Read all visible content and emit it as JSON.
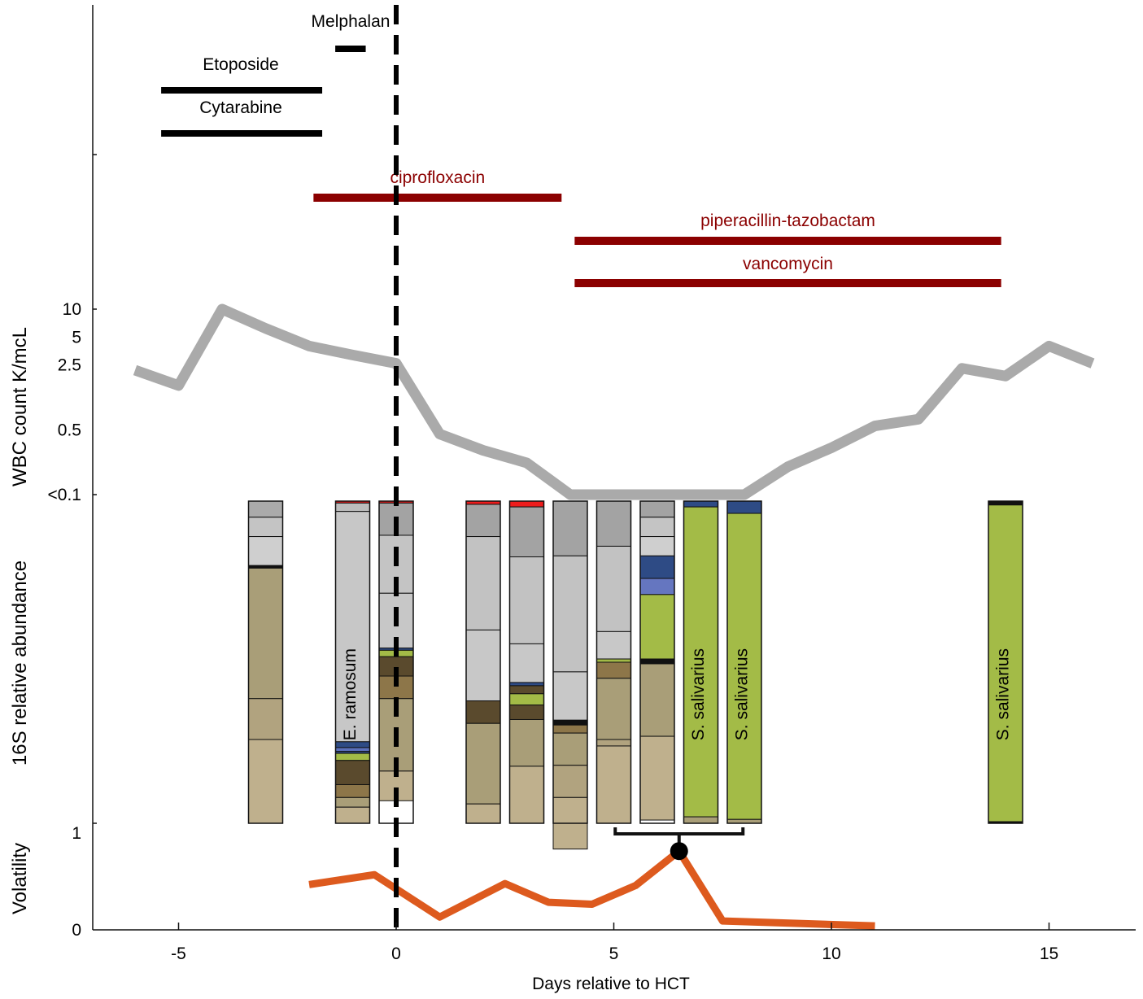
{
  "chart_data": {
    "type": "timeline",
    "xlabel": "Days relative to HCT",
    "x_ticks": [
      -5,
      0,
      5,
      10,
      15
    ],
    "xlim": [
      -7.2,
      17
    ],
    "hct_day": 0,
    "chemotherapy": [
      {
        "name": "Melphalan",
        "start": -1.4,
        "end": -0.7
      },
      {
        "name": "Etoposide",
        "start": -5.4,
        "end": -1.7
      },
      {
        "name": "Cytarabine",
        "start": -5.4,
        "end": -1.7
      }
    ],
    "antibiotics": [
      {
        "name": "ciprofloxacin",
        "start": -1.9,
        "end": 3.8
      },
      {
        "name": "piperacillin-tazobactam",
        "start": 4.1,
        "end": 13.9
      },
      {
        "name": "vancomycin",
        "start": 4.1,
        "end": 13.9
      }
    ],
    "wbc": {
      "ylabel": "WBC count K/mcL",
      "tick_labels": [
        "10",
        "5",
        "2.5",
        "0.5",
        "<0.1"
      ],
      "tick_values": [
        10,
        5,
        2.5,
        0.5,
        0.1
      ],
      "points": [
        [
          -6,
          2.2
        ],
        [
          -5,
          1.5
        ],
        [
          -4,
          10
        ],
        [
          -3,
          6.2
        ],
        [
          -2,
          4
        ],
        [
          -1,
          3.2
        ],
        [
          0,
          2.6
        ],
        [
          1,
          0.45
        ],
        [
          2,
          0.3
        ],
        [
          3,
          0.22
        ],
        [
          4,
          0.1
        ],
        [
          5,
          0.1
        ],
        [
          6,
          0.1
        ],
        [
          7,
          0.1
        ],
        [
          8,
          0.1
        ],
        [
          9,
          0.2
        ],
        [
          10,
          0.32
        ],
        [
          11,
          0.55
        ],
        [
          12,
          0.65
        ],
        [
          13,
          2.3
        ],
        [
          14,
          1.9
        ],
        [
          15,
          4
        ],
        [
          16,
          2.6
        ]
      ]
    },
    "abundance": {
      "ylabel": "16S relative abundance",
      "bars": [
        {
          "day": -3,
          "segments": [
            [
              "#aaaaaa",
              0.05
            ],
            [
              "#c4c4c4",
              0.06
            ],
            [
              "#cfcfcf",
              0.09
            ],
            [
              "#111111",
              0.008
            ],
            [
              "#a99e78",
              0.405
            ],
            [
              "#b1a37f",
              0.127
            ],
            [
              "#bfb08d",
              0.26
            ]
          ]
        },
        {
          "day": -1,
          "segments": [
            [
              "#ee1c1c",
              0.006
            ],
            [
              "#bcbcbc",
              0.026
            ],
            [
              "#c7c7c7",
              0.715
            ],
            [
              "#2e4b85",
              0.018
            ],
            [
              "#5b6fbb",
              0.012
            ],
            [
              "#2e4b85",
              0.006
            ],
            [
              "#a3bb47",
              0.022
            ],
            [
              "#5a4a2d",
              0.075
            ],
            [
              "#8d7649",
              0.04
            ],
            [
              "#a99e78",
              0.03
            ],
            [
              "#bfb08d",
              0.05
            ]
          ]
        },
        {
          "day": 0,
          "segments": [
            [
              "#ee1c1c",
              0.006
            ],
            [
              "#a3a3a3",
              0.1
            ],
            [
              "#c4c4c4",
              0.18
            ],
            [
              "#c7c7c7",
              0.17
            ],
            [
              "#2e4b85",
              0.007
            ],
            [
              "#a3bb47",
              0.02
            ],
            [
              "#5a4a2d",
              0.06
            ],
            [
              "#8d7649",
              0.07
            ],
            [
              "#a99e78",
              0.225
            ],
            [
              "#bfb08d",
              0.092
            ]
          ]
        },
        {
          "day": 2,
          "segments": [
            [
              "#ee1c1c",
              0.01
            ],
            [
              "#a3a3a3",
              0.1
            ],
            [
              "#c2c2c2",
              0.29
            ],
            [
              "#c8c8c8",
              0.22
            ],
            [
              "#5a4a2d",
              0.07
            ],
            [
              "#a99e78",
              0.25
            ],
            [
              "#bfb08d",
              0.06
            ]
          ]
        },
        {
          "day": 3,
          "segments": [
            [
              "#ee1c1c",
              0.018
            ],
            [
              "#a3a3a3",
              0.155
            ],
            [
              "#c2c2c2",
              0.27
            ],
            [
              "#c8c8c8",
              0.12
            ],
            [
              "#2e4b85",
              0.01
            ],
            [
              "#5a4a2d",
              0.025
            ],
            [
              "#a3bb47",
              0.035
            ],
            [
              "#5a4a2d",
              0.045
            ],
            [
              "#a99e78",
              0.145
            ],
            [
              "#bfb08d",
              0.177
            ]
          ]
        },
        {
          "day": 4,
          "segments": [
            [
              "#a3a3a3",
              0.17
            ],
            [
              "#c2c2c2",
              0.36
            ],
            [
              "#c8c8c8",
              0.15
            ],
            [
              "#111111",
              0.015
            ],
            [
              "#8d7649",
              0.025
            ],
            [
              "#a99e78",
              0.1
            ],
            [
              "#b1a37f",
              0.1
            ],
            [
              "#bfb08d",
              0.16
            ]
          ]
        },
        {
          "day": 5,
          "segments": [
            [
              "#a3a3a3",
              0.14
            ],
            [
              "#c2c2c2",
              0.265
            ],
            [
              "#c8c8c8",
              0.085
            ],
            [
              "#a3bb47",
              0.01
            ],
            [
              "#8d7649",
              0.05
            ],
            [
              "#a99e78",
              0.19
            ],
            [
              "#b1a37f",
              0.02
            ],
            [
              "#bfb08d",
              0.24
            ]
          ]
        },
        {
          "day": 6,
          "segments": [
            [
              "#a3a3a3",
              0.05
            ],
            [
              "#c4c4c4",
              0.06
            ],
            [
              "#cfcfcf",
              0.06
            ],
            [
              "#2e4b85",
              0.07
            ],
            [
              "#6576c0",
              0.05
            ],
            [
              "#a3bb47",
              0.2
            ],
            [
              "#111111",
              0.015
            ],
            [
              "#a99e78",
              0.225
            ],
            [
              "#bfb08d",
              0.26
            ]
          ]
        },
        {
          "day": 7,
          "segments": [
            [
              "#2e4b85",
              0.018
            ],
            [
              "#a3bb47",
              0.962
            ],
            [
              "#a99e78",
              0.02
            ]
          ]
        },
        {
          "day": 8,
          "segments": [
            [
              "#2e4b85",
              0.038
            ],
            [
              "#a3bb47",
              0.95
            ],
            [
              "#a99e78",
              0.012
            ]
          ]
        },
        {
          "day": 14,
          "segments": [
            [
              "#111111",
              0.012
            ],
            [
              "#a3bb47",
              0.983
            ],
            [
              "#111111",
              0.005
            ]
          ]
        }
      ],
      "bar_labels": [
        {
          "day": -1,
          "text": "E. ramosum"
        },
        {
          "day": 7,
          "text": "S. salivarius"
        },
        {
          "day": 8,
          "text": "S. salivarius"
        },
        {
          "day": 14,
          "text": "S. salivarius"
        }
      ]
    },
    "volatility": {
      "ylabel": "Volatility",
      "tick_labels": [
        "1",
        "0"
      ],
      "ylim": [
        0,
        1
      ],
      "points": [
        [
          -2,
          0.46
        ],
        [
          -0.5,
          0.56
        ],
        [
          1,
          0.13
        ],
        [
          2.5,
          0.47
        ],
        [
          3.5,
          0.28
        ],
        [
          4.5,
          0.26
        ],
        [
          5.5,
          0.45
        ],
        [
          6.5,
          0.8
        ],
        [
          7.5,
          0.09
        ],
        [
          11,
          0.04
        ]
      ],
      "highlight_day": 6.5,
      "bracket": [
        5.5,
        7.5
      ]
    },
    "colors": {
      "axis": "#111111",
      "chemo": "#000000",
      "antibiotic": "#8b0000",
      "wbc_line": "#aaaaaa",
      "volatility_line": "#dd5a1e",
      "hct_line": "#000000"
    }
  }
}
